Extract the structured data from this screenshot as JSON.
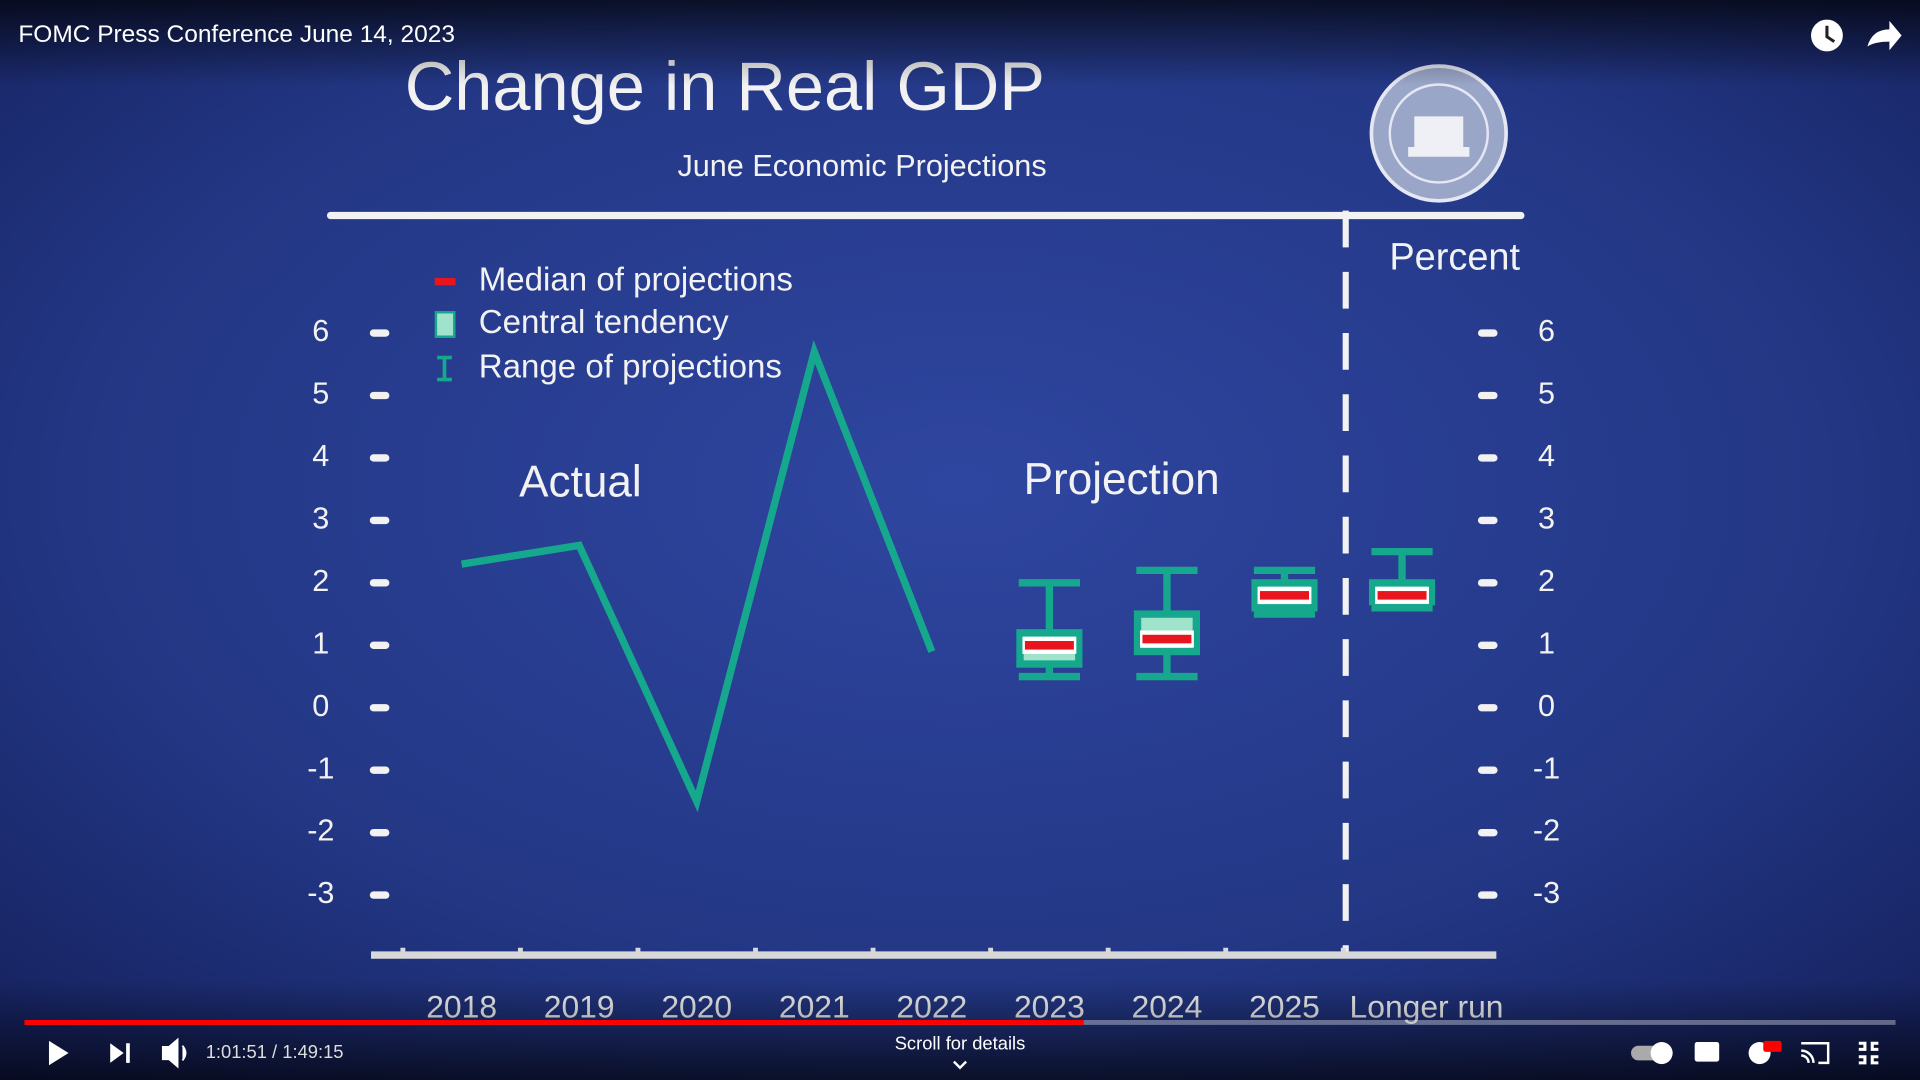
{
  "video": {
    "title": "FOMC Press Conference June 14, 2023",
    "time": "1:01:51 / 1:49:15",
    "scroll_hint": "Scroll for details"
  },
  "chart_data": {
    "type": "box",
    "title": "Change in Real GDP",
    "subtitle": "June Economic Projections",
    "ylabel": "Percent",
    "annotations": [
      "Projection"
    ],
    "categories": [
      "2018",
      "2019",
      "2020",
      "2021",
      "2022",
      "2023",
      "2024",
      "2025",
      "Longer run"
    ],
    "ylim": [
      -4,
      8
    ],
    "yticks": [
      -3,
      -2,
      -1,
      0,
      1,
      2,
      3,
      4,
      5,
      6
    ],
    "series": [
      {
        "name": "Actual",
        "color": "#16a88c",
        "values": [
          2.3,
          2.6,
          -1.5,
          5.7,
          0.9,
          null,
          null,
          null,
          null
        ]
      }
    ],
    "projections": {
      "legend": [
        "Median of projections",
        "Central tendency",
        "Range of projections"
      ],
      "colors": [
        "#e8141e",
        "#9fe3cc",
        "#16a88c"
      ],
      "median": [
        null,
        null,
        null,
        null,
        null,
        1.0,
        1.1,
        1.8,
        1.8
      ],
      "central_tendency_low": [
        null,
        null,
        null,
        null,
        null,
        0.7,
        0.9,
        1.6,
        1.7
      ],
      "central_tendency_high": [
        null,
        null,
        null,
        null,
        null,
        1.2,
        1.5,
        2.0,
        2.0
      ],
      "range_low": [
        null,
        null,
        null,
        null,
        null,
        0.5,
        0.5,
        1.5,
        1.6
      ],
      "range_high": [
        null,
        null,
        null,
        null,
        null,
        2.0,
        2.2,
        2.2,
        2.5
      ]
    }
  }
}
